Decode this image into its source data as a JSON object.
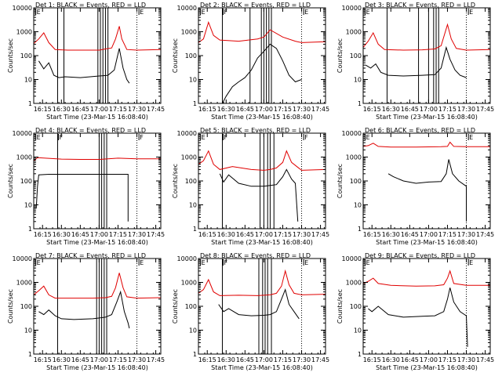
{
  "chart_data": {
    "type": "line",
    "yscale": "log",
    "ylim": [
      1,
      10000
    ],
    "xlim": [
      "16:08",
      "17:49"
    ],
    "x_ticks": [
      "16:15",
      "16:30",
      "16:45",
      "17:00",
      "17:15",
      "17:30",
      "17:45"
    ],
    "y_ticks": [
      "1",
      "10",
      "100",
      "1000",
      "10000"
    ],
    "ylabel": "Counts/sec",
    "xlabel": "Start Time (23-Mar-15 16:08:40)",
    "panels": [
      {
        "title": "Det 1: BLACK = Events, RED = LLD",
        "flags": [
          {
            "t": "16:09",
            "label": "E"
          },
          {
            "t": "17:31",
            "label": "E"
          }
        ],
        "solid_lines": [
          "16:27",
          "16:32",
          "16:59",
          "17:01",
          "17:03",
          "17:05",
          "17:07"
        ],
        "dotted_lines": [
          "17:30"
        ],
        "series": [
          {
            "name": "RED = LLD",
            "t": [
              "16:08",
              "16:12",
              "16:16",
              "16:20",
              "16:25",
              "16:35",
              "16:50",
              "17:00",
              "17:05",
              "17:10",
              "17:13",
              "17:16",
              "17:18",
              "17:22",
              "17:30",
              "17:49"
            ],
            "y": [
              320,
              500,
              900,
              350,
              180,
              170,
              170,
              170,
              190,
              210,
              500,
              1700,
              500,
              180,
              170,
              180
            ]
          },
          {
            "name": "BLACK = Events",
            "t": [
              "16:12",
              "16:16",
              "16:20",
              "16:24",
              "16:28",
              "16:33",
              "16:45",
              "17:00",
              "17:07",
              "17:12",
              "17:16",
              "17:19",
              "17:22",
              "17:24"
            ],
            "y": [
              60,
              28,
              50,
              15,
              12,
              13,
              12,
              14,
              15,
              25,
              200,
              30,
              10,
              7
            ]
          }
        ]
      },
      {
        "title": "Det 2: BLACK = Events, RED = LLD",
        "flags": [
          {
            "t": "16:09",
            "label": "E"
          },
          {
            "t": "16:27",
            "label": "F"
          },
          {
            "t": "17:31",
            "label": "E"
          }
        ],
        "solid_lines": [
          "16:27",
          "16:49",
          "16:58",
          "17:00",
          "17:02",
          "17:04",
          "17:06"
        ],
        "dotted_lines": [
          "17:30"
        ],
        "series": [
          {
            "name": "RED = LLD",
            "t": [
              "16:08",
              "16:12",
              "16:16",
              "16:20",
              "16:25",
              "16:40",
              "16:55",
              "17:00",
              "17:05",
              "17:15",
              "17:25",
              "17:30",
              "17:49"
            ],
            "y": [
              350,
              500,
              2500,
              700,
              450,
              400,
              500,
              600,
              1200,
              600,
              400,
              350,
              380
            ]
          },
          {
            "name": "BLACK = Events",
            "t": [
              "16:27",
              "16:30",
              "16:35",
              "16:40",
              "16:45",
              "16:50",
              "16:55",
              "17:00",
              "17:05",
              "17:10",
              "17:15",
              "17:20",
              "17:25",
              "17:30"
            ],
            "y": [
              1,
              2,
              5,
              8,
              12,
              25,
              80,
              150,
              300,
              200,
              60,
              15,
              8,
              10
            ]
          }
        ]
      },
      {
        "title": "Det 3: BLACK = Events, RED = LLD",
        "flags": [
          {
            "t": "16:09",
            "label": "E"
          },
          {
            "t": "17:31",
            "label": "E"
          }
        ],
        "solid_lines": [
          "16:27",
          "16:52",
          "17:00",
          "17:04",
          "17:06",
          "17:08"
        ],
        "dotted_lines": [
          "17:30"
        ],
        "series": [
          {
            "name": "RED = LLD",
            "t": [
              "16:08",
              "16:12",
              "16:16",
              "16:20",
              "16:25",
              "16:40",
              "16:55",
              "17:05",
              "17:10",
              "17:15",
              "17:18",
              "17:22",
              "17:30",
              "17:49"
            ],
            "y": [
              220,
              400,
              900,
              300,
              180,
              170,
              175,
              190,
              260,
              2000,
              500,
              200,
              170,
              180
            ]
          },
          {
            "name": "BLACK = Events",
            "t": [
              "16:10",
              "16:14",
              "16:18",
              "16:22",
              "16:28",
              "16:40",
              "16:55",
              "17:05",
              "17:10",
              "17:14",
              "17:17",
              "17:21",
              "17:25",
              "17:30"
            ],
            "y": [
              40,
              30,
              45,
              20,
              15,
              14,
              15,
              16,
              30,
              220,
              70,
              25,
              15,
              12
            ]
          }
        ]
      },
      {
        "title": "Det 4: BLACK = Events, RED = LLD",
        "flags": [
          {
            "t": "16:09",
            "label": "E"
          },
          {
            "t": "16:27",
            "label": "F"
          },
          {
            "t": "17:31",
            "label": "F"
          }
        ],
        "solid_lines": [
          "16:27",
          "17:00",
          "17:02",
          "17:04",
          "17:06"
        ],
        "dotted_lines": [
          "17:30"
        ],
        "series": [
          {
            "name": "RED = LLD",
            "t": [
              "16:08",
              "16:11",
              "16:30",
              "16:45",
              "17:00",
              "17:15",
              "17:30",
              "17:49"
            ],
            "y": [
              700,
              950,
              820,
              800,
              800,
              900,
              850,
              850
            ]
          },
          {
            "name": "BLACK = Events",
            "t": [
              "16:10",
              "16:11",
              "16:12",
              "16:20",
              "16:30",
              "17:00",
              "17:20",
              "17:23",
              "17:23"
            ],
            "y": [
              7,
              60,
              180,
              190,
              190,
              190,
              190,
              190,
              2
            ]
          }
        ]
      },
      {
        "title": "Det 5: BLACK = Events, RED = LLD",
        "flags": [
          {
            "t": "16:09",
            "label": "E"
          },
          {
            "t": "16:27",
            "label": "F"
          },
          {
            "t": "17:31",
            "label": "F"
          }
        ],
        "solid_lines": [
          "16:27",
          "16:57",
          "17:00",
          "17:03",
          "17:05",
          "17:08"
        ],
        "dotted_lines": [
          "17:30"
        ],
        "series": [
          {
            "name": "RED = LLD",
            "t": [
              "16:08",
              "16:12",
              "16:16",
              "16:20",
              "16:25",
              "16:35",
              "16:50",
              "17:00",
              "17:05",
              "17:10",
              "17:15",
              "17:18",
              "17:22",
              "17:30",
              "17:49"
            ],
            "y": [
              500,
              700,
              1800,
              500,
              300,
              400,
              300,
              280,
              300,
              350,
              600,
              1800,
              600,
              280,
              300
            ]
          },
          {
            "name": "BLACK = Events",
            "t": [
              "16:25",
              "16:28",
              "16:32",
              "16:40",
              "16:50",
              "17:00",
              "17:05",
              "17:10",
              "17:15",
              "17:18",
              "17:22",
              "17:25",
              "17:27"
            ],
            "y": [
              200,
              90,
              180,
              80,
              60,
              60,
              65,
              70,
              150,
              300,
              120,
              80,
              2
            ]
          }
        ]
      },
      {
        "title": "Det 6: BLACK = Events, RED = LLD",
        "flags": [
          {
            "t": "16:09",
            "label": "E"
          },
          {
            "t": "17:31",
            "label": "E"
          }
        ],
        "solid_lines": [],
        "dotted_lines": [
          "17:30"
        ],
        "series": [
          {
            "name": "RED = LLD",
            "t": [
              "16:08",
              "16:12",
              "16:16",
              "16:20",
              "16:30",
              "16:50",
              "17:10",
              "17:15",
              "17:17",
              "17:20",
              "17:30",
              "17:49"
            ],
            "y": [
              2800,
              3000,
              3800,
              2800,
              2600,
              2600,
              2700,
              2800,
              4200,
              2800,
              2700,
              2700
            ]
          },
          {
            "name": "BLACK = Events",
            "t": [
              "16:28",
              "16:32",
              "16:40",
              "16:50",
              "17:00",
              "17:10",
              "17:14",
              "17:16",
              "17:19",
              "17:24",
              "17:30",
              "17:30"
            ],
            "y": [
              200,
              150,
              100,
              80,
              90,
              95,
              200,
              800,
              200,
              100,
              60,
              2
            ]
          }
        ]
      },
      {
        "title": "Det 7: BLACK = Events, RED = LLD",
        "flags": [
          {
            "t": "16:09",
            "label": "E"
          },
          {
            "t": "17:31",
            "label": "E"
          }
        ],
        "solid_lines": [
          "16:27",
          "16:58",
          "17:00",
          "17:02",
          "17:04",
          "17:06"
        ],
        "dotted_lines": [
          "17:30"
        ],
        "series": [
          {
            "name": "RED = LLD",
            "t": [
              "16:08",
              "16:12",
              "16:16",
              "16:20",
              "16:25",
              "16:40",
              "16:55",
              "17:05",
              "17:10",
              "17:13",
              "17:16",
              "17:19",
              "17:22",
              "17:30",
              "17:49"
            ],
            "y": [
              300,
              450,
              700,
              300,
              220,
              220,
              220,
              230,
              260,
              600,
              2500,
              600,
              250,
              220,
              230
            ]
          },
          {
            "name": "BLACK = Events",
            "t": [
              "16:12",
              "16:16",
              "16:20",
              "16:25",
              "16:30",
              "16:40",
              "16:55",
              "17:05",
              "17:10",
              "17:14",
              "17:17",
              "17:20",
              "17:23",
              "17:24"
            ],
            "y": [
              60,
              45,
              70,
              40,
              30,
              28,
              30,
              35,
              45,
              150,
              400,
              60,
              20,
              12
            ]
          }
        ]
      },
      {
        "title": "Det 8: BLACK = Events, RED = LLD",
        "flags": [
          {
            "t": "16:09",
            "label": "E"
          },
          {
            "t": "16:27",
            "label": "F"
          },
          {
            "t": "17:31",
            "label": "E"
          }
        ],
        "solid_lines": [
          "16:27",
          "16:56",
          "16:59",
          "17:01",
          "17:03",
          "17:06"
        ],
        "dotted_lines": [
          "17:30"
        ],
        "series": [
          {
            "name": "RED = LLD",
            "t": [
              "16:08",
              "16:12",
              "16:16",
              "16:20",
              "16:25",
              "16:40",
              "16:55",
              "17:05",
              "17:10",
              "17:14",
              "17:17",
              "17:20",
              "17:24",
              "17:30",
              "17:49"
            ],
            "y": [
              350,
              500,
              1300,
              400,
              280,
              290,
              280,
              300,
              350,
              700,
              3000,
              800,
              350,
              300,
              320
            ]
          },
          {
            "name": "BLACK = Events",
            "t": [
              "16:24",
              "16:28",
              "16:32",
              "16:40",
              "16:50",
              "17:00",
              "17:05",
              "17:10",
              "17:14",
              "17:17",
              "17:20",
              "17:24",
              "17:28"
            ],
            "y": [
              120,
              60,
              80,
              45,
              40,
              42,
              45,
              60,
              200,
              500,
              120,
              60,
              30
            ]
          }
        ]
      },
      {
        "title": "Det 9: BLACK = Events, RED = LLD",
        "flags": [
          {
            "t": "16:09",
            "label": "E"
          },
          {
            "t": "17:31",
            "label": "E"
          }
        ],
        "solid_lines": [],
        "dotted_lines": [
          "17:30"
        ],
        "series": [
          {
            "name": "RED = LLD",
            "t": [
              "16:08",
              "16:12",
              "16:16",
              "16:20",
              "16:30",
              "16:50",
              "17:05",
              "17:12",
              "17:15",
              "17:17",
              "17:20",
              "17:30",
              "17:49"
            ],
            "y": [
              900,
              1100,
              1500,
              900,
              750,
              700,
              720,
              800,
              1500,
              3000,
              900,
              750,
              750
            ]
          },
          {
            "name": "BLACK = Events",
            "t": [
              "16:12",
              "16:15",
              "16:20",
              "16:28",
              "16:40",
              "16:55",
              "17:05",
              "17:12",
              "17:15",
              "17:17",
              "17:20",
              "17:25",
              "17:30",
              "17:31"
            ],
            "y": [
              80,
              60,
              100,
              45,
              35,
              38,
              40,
              60,
              200,
              600,
              150,
              60,
              40,
              2
            ]
          }
        ]
      }
    ]
  }
}
